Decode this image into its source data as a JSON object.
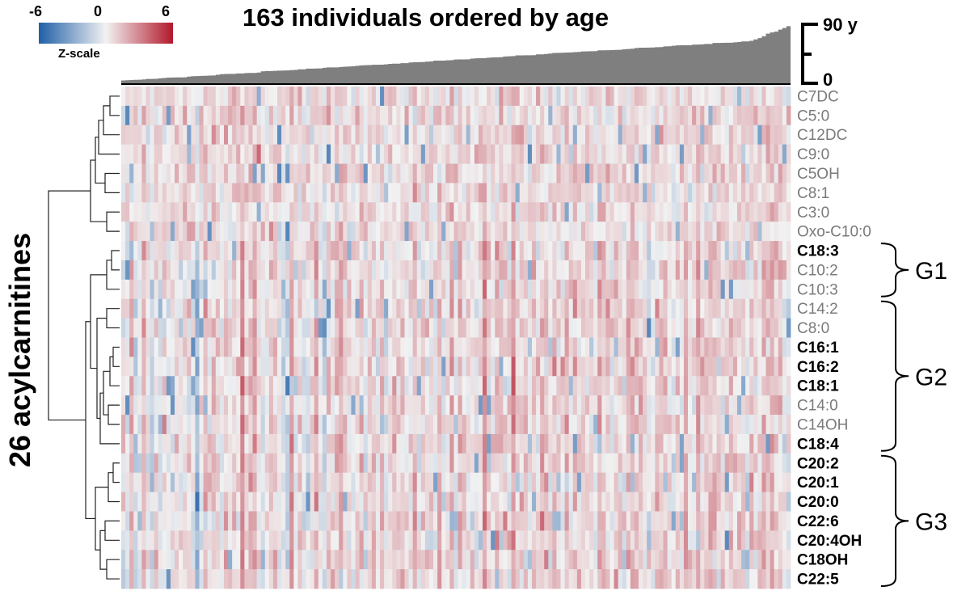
{
  "chart_data": {
    "type": "heatmap",
    "title": "163 individuals ordered by age",
    "ylabel": "26 acylcarnitines",
    "n_individuals": 163,
    "colorscale": {
      "label": "Z-scale",
      "min": -6,
      "mid": 0,
      "max": 6,
      "tick_labels": [
        "-6",
        "0",
        "6"
      ],
      "colors": {
        "low": "#1f5fa6",
        "mid": "#f4f4f4",
        "high": "#b2182b"
      }
    },
    "age_bar": {
      "axis_labels": {
        "top": "90 y",
        "bottom": "0"
      },
      "range": [
        0,
        90
      ],
      "max_age": 90,
      "bar_color": "#7f7f7f"
    },
    "rows": [
      {
        "name": "C7DC",
        "bold": false
      },
      {
        "name": "C5:0",
        "bold": false
      },
      {
        "name": "C12DC",
        "bold": false
      },
      {
        "name": "C9:0",
        "bold": false
      },
      {
        "name": "C5OH",
        "bold": false
      },
      {
        "name": "C8:1",
        "bold": false
      },
      {
        "name": "C3:0",
        "bold": false
      },
      {
        "name": "Oxo-C10:0",
        "bold": false
      },
      {
        "name": "C18:3",
        "bold": true
      },
      {
        "name": "C10:2",
        "bold": false
      },
      {
        "name": "C10:3",
        "bold": false
      },
      {
        "name": "C14:2",
        "bold": false
      },
      {
        "name": "C8:0",
        "bold": false
      },
      {
        "name": "C16:1",
        "bold": true
      },
      {
        "name": "C16:2",
        "bold": true
      },
      {
        "name": "C18:1",
        "bold": true
      },
      {
        "name": "C14:0",
        "bold": false
      },
      {
        "name": "C14OH",
        "bold": false
      },
      {
        "name": "C18:4",
        "bold": true
      },
      {
        "name": "C20:2",
        "bold": true
      },
      {
        "name": "C20:1",
        "bold": true
      },
      {
        "name": "C20:0",
        "bold": true
      },
      {
        "name": "C22:6",
        "bold": true
      },
      {
        "name": "C20:4OH",
        "bold": true
      },
      {
        "name": "C18OH",
        "bold": true
      },
      {
        "name": "C22:5",
        "bold": true
      }
    ],
    "groups": [
      {
        "label": "G1",
        "rows": [
          "C18:3",
          "C10:2",
          "C10:3"
        ]
      },
      {
        "label": "G2",
        "rows": [
          "C14:2",
          "C8:0",
          "C16:1",
          "C16:2",
          "C18:1",
          "C14:0",
          "C14OH",
          "C18:4"
        ]
      },
      {
        "label": "G3",
        "rows": [
          "C20:2",
          "C20:1",
          "C20:0",
          "C22:6",
          "C20:4OH",
          "C18OH",
          "C22:5"
        ]
      }
    ],
    "label_colors": {
      "bold": "#000000",
      "normal": "#7a7a7a"
    }
  }
}
